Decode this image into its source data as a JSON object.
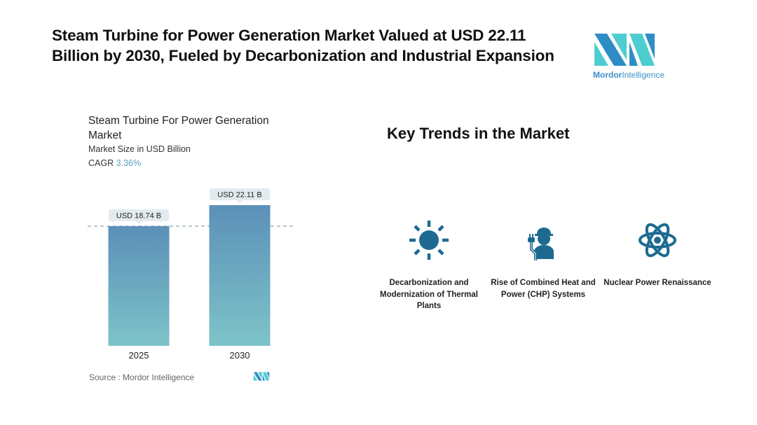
{
  "headline": "Steam Turbine for Power Generation Market Valued at USD 22.11 Billion by 2030, Fueled by Decarbonization and Industrial Expansion",
  "brand": {
    "name_bold": "Mordor",
    "name_light": "Intelligence",
    "colors": {
      "teal": "#4ecdd0",
      "blue": "#2f8dc6"
    }
  },
  "chart_panel": {
    "title": "Steam Turbine For Power Generation Market",
    "subtitle": "Market Size in USD Billion",
    "cagr_label": "CAGR",
    "cagr_value": "3.36%",
    "source": "Source :  Mordor Intelligence"
  },
  "chart_data": {
    "type": "bar",
    "title": "Steam Turbine For Power Generation Market",
    "ylabel": "Market Size in USD Billion",
    "xlabel": "",
    "categories": [
      "2025",
      "2030"
    ],
    "values": [
      18.74,
      22.11
    ],
    "data_labels": [
      "USD 18.74 B",
      "USD 22.11 B"
    ],
    "reference_line": 18.74,
    "ylim": [
      0,
      22.11
    ],
    "grid": false,
    "colors": {
      "bar_top": "#5b90b8",
      "bar_bottom": "#7ec3c9",
      "label_bg": "#e3ebef"
    }
  },
  "trends": {
    "title": "Key Trends in the Market",
    "items": [
      {
        "icon": "sun-icon",
        "label": "Decarbonization and Modernization of Thermal Plants"
      },
      {
        "icon": "worker-plug-icon",
        "label": "Rise of Combined Heat and Power (CHP) Systems"
      },
      {
        "icon": "atom-icon",
        "label": "Nuclear Power Renaissance"
      }
    ],
    "icon_color": "#1d6a91"
  }
}
